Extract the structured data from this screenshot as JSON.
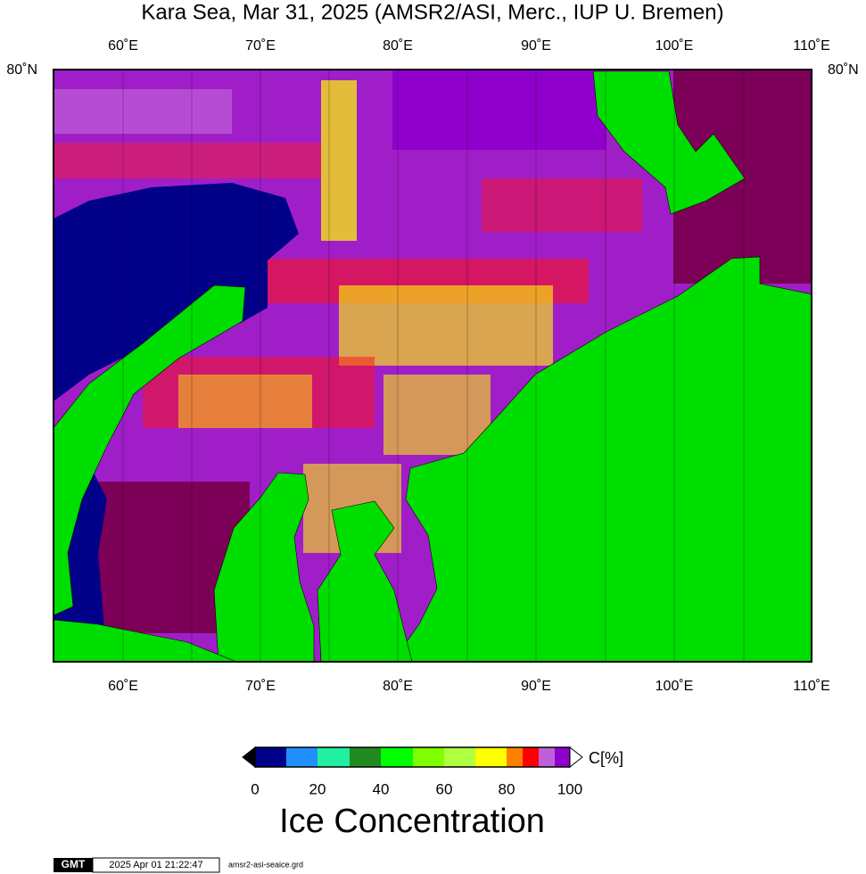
{
  "header": {
    "title": "Kara Sea, Mar 31, 2025 (AMSR2/ASI, Merc., IUP U. Bremen)"
  },
  "map": {
    "lon_labels": [
      "60˚E",
      "70˚E",
      "80˚E",
      "90˚E",
      "100˚E",
      "110˚E"
    ],
    "lat_label": "80˚N"
  },
  "colorbar": {
    "unit": "C[%]",
    "tick_labels": [
      "0",
      "20",
      "40",
      "60",
      "80",
      "100"
    ],
    "label": "Ice Concentration"
  },
  "footer": {
    "logo": "GMT",
    "timestamp": "2025 Apr 01 21:22:47",
    "file": "amsr2-asi-seaice.grd"
  }
}
